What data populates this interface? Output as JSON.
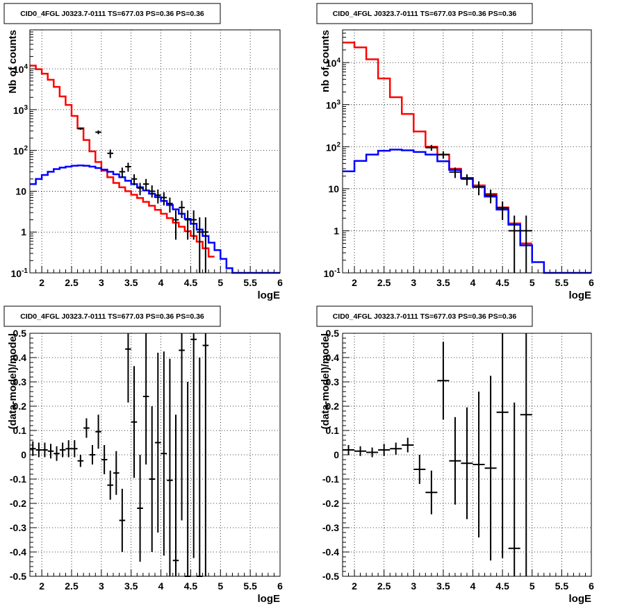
{
  "chart_data": [
    {
      "type": "line",
      "title": "CID0_4FGL J0323.7-0111 TS=677.03 PS=0.36 PS=0.36",
      "xlabel": "logE",
      "ylabel": "Nb of counts",
      "xlim": [
        1.8,
        6.0
      ],
      "ylim": [
        0.1,
        90000
      ],
      "yscale": "log",
      "grid": true,
      "xticks": [
        "2",
        "2.5",
        "3",
        "3.5",
        "4",
        "4.5",
        "5",
        "5.5",
        "6"
      ],
      "yticks": [
        "10^-1",
        "1",
        "10",
        "10^2",
        "10^3",
        "10^4"
      ],
      "bin_width": 0.1,
      "series": [
        {
          "kind": "model-total",
          "color": "#ff0000",
          "x": [
            1.85,
            1.95,
            2.05,
            2.15,
            2.25,
            2.35,
            2.45,
            2.55,
            2.65,
            2.75,
            2.85,
            2.95,
            3.05,
            3.15,
            3.25,
            3.35,
            3.45,
            3.55,
            3.65,
            3.75,
            3.85,
            3.95,
            4.05,
            4.15,
            4.25,
            4.35,
            4.45,
            4.55,
            4.65,
            4.75,
            4.85
          ],
          "values": [
            12000,
            9800,
            7600,
            5400,
            3600,
            2100,
            1300,
            700,
            350,
            180,
            95,
            52,
            32,
            22,
            16,
            12.5,
            10,
            8.2,
            6.8,
            5.5,
            4.4,
            3.5,
            2.8,
            2.2,
            1.7,
            1.35,
            1.05,
            0.8,
            0.58,
            0.4,
            0.25
          ]
        },
        {
          "kind": "model-source",
          "color": "#0000ff",
          "x": [
            1.85,
            1.95,
            2.05,
            2.15,
            2.25,
            2.35,
            2.45,
            2.55,
            2.65,
            2.75,
            2.85,
            2.95,
            3.05,
            3.15,
            3.25,
            3.35,
            3.45,
            3.55,
            3.65,
            3.75,
            3.85,
            3.95,
            4.05,
            4.15,
            4.25,
            4.35,
            4.45,
            4.55,
            4.65,
            4.75,
            4.85,
            4.95,
            5.05,
            5.15,
            5.25,
            5.35,
            5.45,
            5.55,
            5.65,
            5.75,
            5.85,
            5.95
          ],
          "values": [
            15,
            20,
            25,
            30,
            35,
            38,
            40,
            42,
            43,
            42,
            40,
            37,
            34,
            30,
            26,
            22,
            18,
            15,
            12.5,
            10.5,
            8.7,
            7.2,
            5.8,
            4.6,
            3.6,
            2.8,
            2.1,
            1.6,
            1.15,
            0.8,
            0.55,
            0.36,
            0.22,
            0.13,
            0.1,
            0.1,
            0.1,
            0.1,
            0.1,
            0.1,
            0.1,
            0.1
          ]
        },
        {
          "kind": "data",
          "color": "#000000",
          "x": [
            2.65,
            2.95,
            3.15,
            3.35,
            3.45,
            3.55,
            3.65,
            3.75,
            3.85,
            3.95,
            4.05,
            4.15,
            4.25,
            4.35,
            4.45,
            4.55,
            4.65,
            4.75
          ],
          "values": [
            340,
            280,
            85,
            30,
            40,
            20,
            12,
            15,
            10,
            8,
            7,
            5,
            2,
            4,
            2,
            2,
            1,
            1
          ],
          "err_low": [
            320,
            250,
            65,
            22,
            30,
            14,
            8,
            10,
            7,
            5,
            4.5,
            3,
            0.65,
            2.2,
            0.65,
            0.65,
            0.1,
            0.1
          ],
          "err_high": [
            360,
            310,
            105,
            38,
            50,
            26,
            16,
            20,
            14,
            11,
            9.5,
            7,
            3.4,
            5.8,
            3.4,
            3.4,
            2.3,
            2.3
          ]
        }
      ]
    },
    {
      "type": "line",
      "title": "CID0_4FGL J0323.7-0111 TS=677.03 PS=0.36 PS=0.36",
      "xlabel": "logE",
      "ylabel": "nb of counts",
      "xlim": [
        1.8,
        6.0
      ],
      "ylim": [
        0.1,
        60000
      ],
      "yscale": "log",
      "grid": true,
      "xticks": [
        "2",
        "2.5",
        "3",
        "3.5",
        "4",
        "4.5",
        "5",
        "5.5",
        "6"
      ],
      "yticks": [
        "10^-1",
        "1",
        "10",
        "10^2",
        "10^3",
        "10^4"
      ],
      "bin_width": 0.2,
      "series": [
        {
          "kind": "model-total",
          "color": "#ff0000",
          "x": [
            1.9,
            2.1,
            2.3,
            2.5,
            2.7,
            2.9,
            3.1,
            3.3,
            3.5,
            3.7,
            3.9,
            4.1,
            4.3,
            4.5,
            4.7,
            4.9
          ],
          "values": [
            30000,
            23000,
            12000,
            4200,
            1500,
            600,
            230,
            100,
            65,
            30,
            18,
            12,
            7.5,
            3.6,
            1.5,
            0.5
          ]
        },
        {
          "kind": "model-source",
          "color": "#0000ff",
          "x": [
            1.9,
            2.1,
            2.3,
            2.5,
            2.7,
            2.9,
            3.1,
            3.3,
            3.5,
            3.7,
            3.9,
            4.1,
            4.3,
            4.5,
            4.7,
            4.9,
            5.1,
            5.3,
            5.5,
            5.7,
            5.9
          ],
          "values": [
            26,
            46,
            65,
            80,
            85,
            82,
            75,
            65,
            45,
            28,
            18,
            11,
            6.5,
            3.2,
            1.4,
            0.45,
            0.18,
            0.1,
            0.1,
            0.1,
            0.1
          ]
        },
        {
          "kind": "data",
          "color": "#000000",
          "x": [
            3.3,
            3.5,
            3.7,
            3.9,
            4.1,
            4.3,
            4.5,
            4.7,
            4.9
          ],
          "values": [
            95,
            65,
            25,
            17,
            11,
            7,
            3.5,
            1,
            1
          ],
          "err_low": [
            80,
            52,
            18,
            12,
            7,
            4.5,
            1.8,
            0.1,
            0.1
          ],
          "err_high": [
            110,
            78,
            32,
            22,
            15,
            9.5,
            5,
            2.3,
            2.3
          ]
        }
      ]
    },
    {
      "type": "scatter",
      "title": "CID0_4FGL J0323.7-0111 TS=677.03 PS=0.36 PS=0.36",
      "xlabel": "logE",
      "ylabel": "(data-model)/model",
      "xlim": [
        1.8,
        6.0
      ],
      "ylim": [
        -0.5,
        0.5
      ],
      "grid": true,
      "xticks": [
        "2",
        "2.5",
        "3",
        "3.5",
        "4",
        "4.5",
        "5",
        "5.5",
        "6"
      ],
      "yticks": [
        "-0.5",
        "-0.4",
        "-0.3",
        "-0.2",
        "-0.1",
        "0",
        "0.1",
        "0.2",
        "0.3",
        "0.4",
        "0.5"
      ],
      "bin_width": 0.1,
      "series": [
        {
          "kind": "residual",
          "color": "#000000",
          "x": [
            1.85,
            1.95,
            2.05,
            2.15,
            2.25,
            2.35,
            2.45,
            2.55,
            2.65,
            2.75,
            2.85,
            2.95,
            3.05,
            3.15,
            3.25,
            3.35,
            3.45,
            3.55,
            3.65,
            3.75,
            3.85,
            3.95,
            4.05,
            4.15,
            4.25,
            4.35,
            4.45,
            4.55,
            4.65,
            4.75
          ],
          "values": [
            0.025,
            0.02,
            0.02,
            0.015,
            0.005,
            0.02,
            0.025,
            0.025,
            -0.025,
            0.11,
            0.0,
            0.095,
            -0.02,
            -0.125,
            -0.075,
            -0.27,
            0.435,
            0.135,
            -0.22,
            0.24,
            -0.1,
            0.05,
            0.005,
            -0.105,
            -0.435,
            0.43,
            -0.5,
            0.475,
            -0.5,
            0.45
          ],
          "err": [
            0.03,
            0.03,
            0.03,
            0.03,
            0.03,
            0.03,
            0.035,
            0.035,
            0.025,
            0.04,
            0.04,
            0.07,
            0.06,
            0.06,
            0.09,
            0.13,
            0.22,
            0.23,
            0.22,
            0.28,
            0.3,
            0.37,
            0.42,
            0.5,
            0.6,
            0.7,
            0.8,
            0.9,
            0.9,
            1.0
          ]
        }
      ]
    },
    {
      "type": "scatter",
      "title": "CID0_4FGL J0323.7-0111 TS=677.03 PS=0.36 PS=0.36",
      "xlabel": "logE",
      "ylabel": "(data-model)/model",
      "xlim": [
        1.8,
        6.0
      ],
      "ylim": [
        -0.5,
        0.5
      ],
      "grid": true,
      "xticks": [
        "2",
        "2.5",
        "3",
        "3.5",
        "4",
        "4.5",
        "5",
        "5.5",
        "6"
      ],
      "yticks": [
        "-0.5",
        "-0.4",
        "-0.3",
        "-0.2",
        "-0.1",
        "0",
        "0.1",
        "0.2",
        "0.3",
        "0.4",
        "0.5"
      ],
      "bin_width": 0.2,
      "series": [
        {
          "kind": "residual",
          "color": "#000000",
          "x": [
            1.9,
            2.1,
            2.3,
            2.5,
            2.7,
            2.9,
            3.1,
            3.3,
            3.5,
            3.7,
            3.9,
            4.1,
            4.3,
            4.5,
            4.7,
            4.9
          ],
          "values": [
            0.02,
            0.015,
            0.01,
            0.02,
            0.025,
            0.04,
            -0.06,
            -0.155,
            0.305,
            -0.025,
            -0.035,
            -0.04,
            -0.055,
            0.175,
            -0.385,
            0.165
          ],
          "err": [
            0.02,
            0.02,
            0.02,
            0.025,
            0.025,
            0.03,
            0.06,
            0.09,
            0.16,
            0.18,
            0.23,
            0.3,
            0.38,
            0.6,
            0.6,
            0.7
          ]
        }
      ]
    }
  ]
}
